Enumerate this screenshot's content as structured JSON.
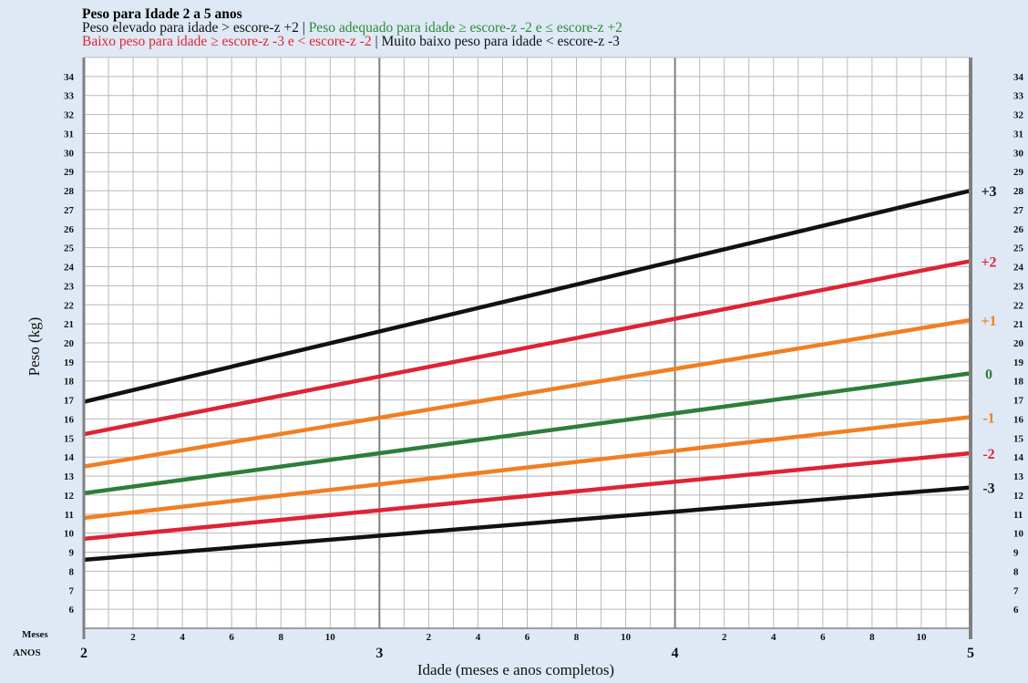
{
  "header": {
    "title": "Peso para Idade 2 a 5 anos",
    "line1_black": "Peso elevado para idade > escore-z +2",
    "sep": " | ",
    "line1_green": "Peso adequado para idade ≥ escore-z -2 e ≤ escore-z +2",
    "line2_red": "Baixo peso para idade ≥ escore-z -3 e < escore-z -2",
    "line2_black": "Muito baixo peso para idade < escore-z -3"
  },
  "colors": {
    "background": "#dfe9f5",
    "grid": "#b8b8b8",
    "frame": "#808080",
    "black": "#111111",
    "red": "#de2335",
    "orange": "#f07f22",
    "green": "#2e7d3a"
  },
  "chart_data": {
    "type": "line",
    "title": "Peso para Idade 2 a 5 anos",
    "xlabel": "Idade (meses e anos completos)",
    "ylabel": "Peso (kg)",
    "x_unit": "years",
    "xlim": [
      2,
      5
    ],
    "ylim": [
      5,
      35
    ],
    "y_ticks": [
      6,
      7,
      8,
      9,
      10,
      11,
      12,
      13,
      14,
      15,
      16,
      17,
      18,
      19,
      20,
      21,
      22,
      23,
      24,
      25,
      26,
      27,
      28,
      29,
      30,
      31,
      32,
      33,
      34
    ],
    "month_row_label": "Meses",
    "year_row_label": "ANOS",
    "month_ticks": [
      "2",
      "4",
      "6",
      "8",
      "10"
    ],
    "year_ticks": [
      "2",
      "3",
      "4",
      "5"
    ],
    "grid": true,
    "series": [
      {
        "name": "+3",
        "color": "black",
        "x": [
          2,
          5
        ],
        "values": [
          16.9,
          28.0
        ]
      },
      {
        "name": "+2",
        "color": "red",
        "x": [
          2,
          5
        ],
        "values": [
          15.2,
          24.3
        ]
      },
      {
        "name": "+1",
        "color": "orange",
        "x": [
          2,
          5
        ],
        "values": [
          13.5,
          21.2
        ]
      },
      {
        "name": "0",
        "color": "green",
        "x": [
          2,
          5
        ],
        "values": [
          12.1,
          18.4
        ]
      },
      {
        "name": "-1",
        "color": "orange",
        "x": [
          2,
          5
        ],
        "values": [
          10.8,
          16.1
        ]
      },
      {
        "name": "-2",
        "color": "red",
        "x": [
          2,
          5
        ],
        "values": [
          9.7,
          14.2
        ]
      },
      {
        "name": "-3",
        "color": "black",
        "x": [
          2,
          5
        ],
        "values": [
          8.6,
          12.4
        ]
      }
    ]
  }
}
